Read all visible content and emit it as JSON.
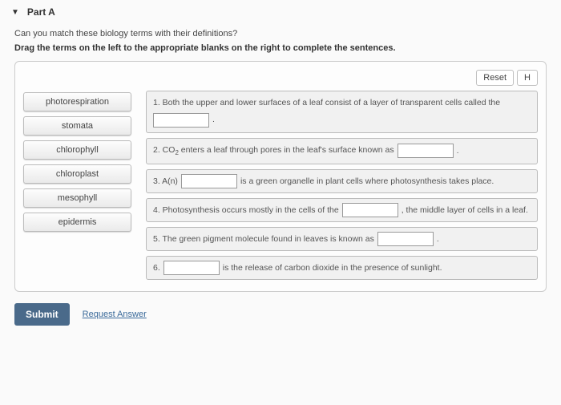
{
  "part": {
    "label": "Part A"
  },
  "question": "Can you match these biology terms with their definitions?",
  "instruction": "Drag the terms on the left to the appropriate blanks on the right to complete the sentences.",
  "buttons": {
    "reset": "Reset",
    "help": "H"
  },
  "terms": [
    "photorespiration",
    "stomata",
    "chlorophyll",
    "chloroplast",
    "mesophyll",
    "epidermis"
  ],
  "defs": {
    "d1a": "1. Both the upper and lower surfaces of a leaf consist of a layer of transparent cells called the",
    "d2a": "2. CO",
    "d2b": " enters a leaf through pores in the leaf's surface known as",
    "d3a": "3. A(n)",
    "d3b": "is a green organelle in plant cells where photosynthesis takes place.",
    "d4a": "4. Photosynthesis occurs mostly in the cells of the",
    "d4b": ", the middle layer of cells in a leaf.",
    "d5a": "5. The green pigment molecule found in leaves is known as",
    "d6a": "6.",
    "d6b": "is the release of carbon dioxide in the presence of sunlight.",
    "sub2": "2",
    "period": "."
  },
  "submit": {
    "label": "Submit",
    "request": "Request Answer"
  }
}
